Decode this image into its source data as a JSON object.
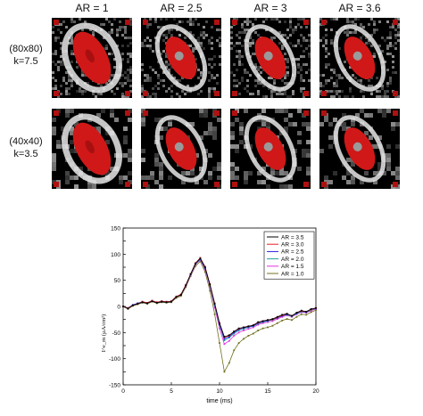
{
  "figure": {
    "column_labels": [
      "AR = 1",
      "AR = 2.5",
      "AR = 3",
      "AR = 3.6"
    ],
    "row_labels": [
      {
        "line1": "(80x80)",
        "line2": "k=7.5"
      },
      {
        "line1": "(40x40)",
        "line2": "k=3.5"
      }
    ],
    "panel_colors": {
      "background": "#000000",
      "activation": "#d01818",
      "ring": "#e8e8e8"
    }
  },
  "chart_data": {
    "type": "line",
    "title": "",
    "xlabel": "time (ms)",
    "ylabel": "I^e_m (µA/cm²)",
    "xlim": [
      0,
      20
    ],
    "ylim": [
      -150,
      150
    ],
    "xticks": [
      0,
      5,
      10,
      15,
      20
    ],
    "yticks": [
      -150,
      -125,
      -100,
      -75,
      -50,
      -25,
      0,
      25,
      50,
      75,
      100,
      125,
      150
    ],
    "legend_position": "top-right",
    "x": [
      0,
      0.5,
      1,
      1.5,
      2,
      2.5,
      3,
      3.5,
      4,
      4.5,
      5,
      5.5,
      6,
      6.5,
      7,
      7.5,
      8,
      8.5,
      9,
      9.5,
      10,
      10.5,
      11,
      11.5,
      12,
      12.5,
      13,
      13.5,
      14,
      14.5,
      15,
      15.5,
      16,
      16.5,
      17,
      17.5,
      18,
      18.5,
      19,
      19.5,
      20
    ],
    "series": [
      {
        "name": "AR = 3.5",
        "color": "#000000",
        "values": [
          0,
          -4,
          2,
          5,
          8,
          6,
          10,
          7,
          9,
          8,
          9,
          18,
          22,
          40,
          62,
          82,
          92,
          75,
          42,
          5,
          -32,
          -58,
          -55,
          -48,
          -42,
          -40,
          -38,
          -36,
          -30,
          -28,
          -26,
          -24,
          -20,
          -16,
          -14,
          -18,
          -12,
          -8,
          -10,
          -5,
          -3
        ]
      },
      {
        "name": "AR = 3.0",
        "color": "#e82020",
        "values": [
          0,
          -3,
          2,
          5,
          9,
          7,
          11,
          8,
          10,
          9,
          10,
          19,
          23,
          41,
          62,
          83,
          93,
          76,
          43,
          6,
          -32,
          -59,
          -56,
          -48,
          -43,
          -40,
          -38,
          -36,
          -31,
          -28,
          -26,
          -25,
          -21,
          -17,
          -14,
          -18,
          -12,
          -9,
          -10,
          -6,
          -3
        ]
      },
      {
        "name": "AR = 2.5",
        "color": "#2020e0",
        "values": [
          0,
          -3,
          3,
          6,
          9,
          7,
          11,
          8,
          10,
          9,
          10,
          19,
          23,
          41,
          61,
          82,
          91,
          74,
          42,
          4,
          -34,
          -62,
          -58,
          -50,
          -44,
          -41,
          -39,
          -37,
          -32,
          -29,
          -27,
          -25,
          -22,
          -18,
          -15,
          -18,
          -13,
          -9,
          -11,
          -6,
          -4
        ]
      },
      {
        "name": "AR = 2.0",
        "color": "#20a0a0",
        "values": [
          0,
          -4,
          2,
          5,
          8,
          6,
          10,
          7,
          9,
          8,
          9,
          18,
          22,
          40,
          61,
          81,
          90,
          73,
          40,
          2,
          -36,
          -65,
          -60,
          -52,
          -46,
          -43,
          -40,
          -38,
          -33,
          -30,
          -28,
          -26,
          -22,
          -18,
          -16,
          -19,
          -14,
          -10,
          -11,
          -7,
          -4
        ]
      },
      {
        "name": "AR = 1.5",
        "color": "#e030e0",
        "values": [
          0,
          -4,
          2,
          5,
          8,
          6,
          10,
          7,
          9,
          8,
          9,
          18,
          22,
          39,
          60,
          80,
          89,
          71,
          38,
          -2,
          -42,
          -72,
          -66,
          -56,
          -50,
          -46,
          -43,
          -40,
          -35,
          -32,
          -30,
          -28,
          -24,
          -20,
          -17,
          -20,
          -15,
          -11,
          -12,
          -8,
          -5
        ]
      },
      {
        "name": "AR = 1.0",
        "color": "#707020",
        "values": [
          0,
          -5,
          1,
          4,
          7,
          5,
          9,
          6,
          8,
          7,
          8,
          16,
          20,
          37,
          58,
          77,
          86,
          66,
          30,
          -15,
          -70,
          -125,
          -108,
          -84,
          -70,
          -62,
          -56,
          -52,
          -46,
          -42,
          -40,
          -37,
          -32,
          -27,
          -24,
          -26,
          -20,
          -15,
          -16,
          -11,
          -7
        ]
      }
    ]
  }
}
